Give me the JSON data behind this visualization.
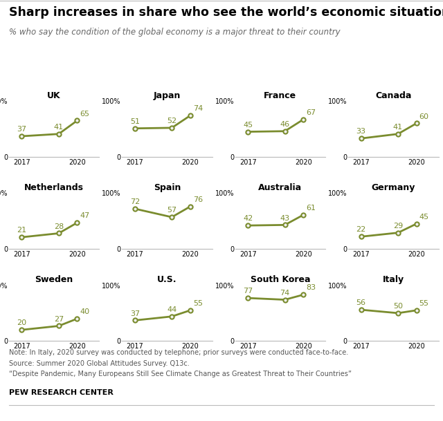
{
  "title": "Sharp increases in share who see the world’s economic situation as a major threat",
  "subtitle": "% who say the condition of the global economy is a major threat to their country",
  "note": "Note: In Italy, 2020 survey was conducted by telephone; prior surveys were conducted face-to-face.",
  "source": "Source: Summer 2020 Global Attitudes Survey. Q13c.",
  "quote": "“Despite Pandemic, Many Europeans Still See Climate Change as Greatest Threat to Their Countries”",
  "branding": "PEW RESEARCH CENTER",
  "countries": [
    "UK",
    "Japan",
    "France",
    "Canada",
    "Netherlands",
    "Spain",
    "Australia",
    "Germany",
    "Sweden",
    "U.S.",
    "South Korea",
    "Italy"
  ],
  "years": [
    2017,
    2019,
    2020
  ],
  "data": {
    "UK": [
      37,
      41,
      65
    ],
    "Japan": [
      51,
      52,
      74
    ],
    "France": [
      45,
      46,
      67
    ],
    "Canada": [
      33,
      41,
      60
    ],
    "Netherlands": [
      21,
      28,
      47
    ],
    "Spain": [
      72,
      57,
      76
    ],
    "Australia": [
      42,
      43,
      61
    ],
    "Germany": [
      22,
      29,
      45
    ],
    "Sweden": [
      20,
      27,
      40
    ],
    "U.S.": [
      37,
      44,
      55
    ],
    "South Korea": [
      77,
      74,
      83
    ],
    "Italy": [
      56,
      50,
      55
    ]
  },
  "line_color": "#7a8c2e",
  "marker_face": "#f0f0f0",
  "marker_edge": "#7a8c2e",
  "ylim": [
    0,
    100
  ],
  "grid_color": "#bbbbbb",
  "bg_color": "#ffffff",
  "label_color": "#7a8c2e",
  "title_fontsize": 12.5,
  "subtitle_fontsize": 8.5,
  "country_fontsize": 9,
  "value_fontsize": 8,
  "note_fontsize": 7,
  "rows": 3,
  "cols": 4
}
